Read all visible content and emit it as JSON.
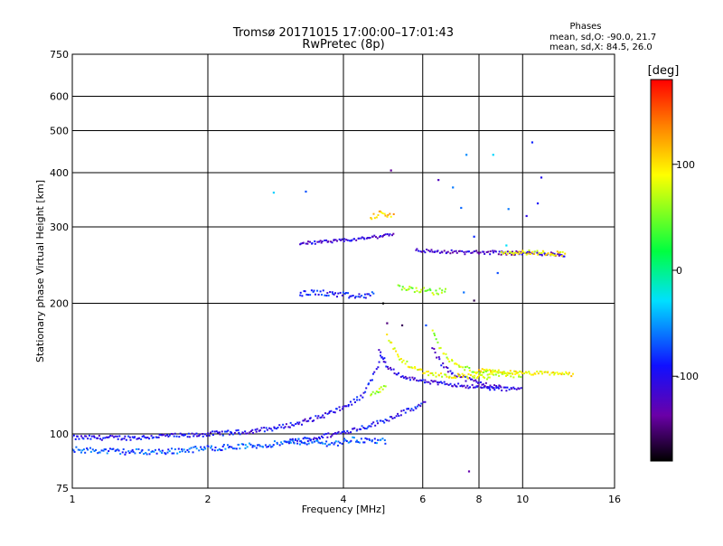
{
  "chart_data": {
    "type": "scatter",
    "title": "Tromsø 20171015 17:00:00–17:01:43",
    "subtitle": "RwPretec (8p)",
    "xlabel": "Frequency [MHz]",
    "ylabel": "Stationary phase Virtual Height [km]",
    "x_scale": "log",
    "y_scale": "log",
    "xlim": [
      1,
      16
    ],
    "ylim": [
      75,
      750
    ],
    "x_ticks": [
      1,
      2,
      4,
      6,
      8,
      10,
      16
    ],
    "x_tick_labels": [
      "1",
      "2",
      "4",
      "6",
      "8",
      "10",
      "16"
    ],
    "y_ticks": [
      75,
      100,
      200,
      300,
      400,
      500,
      600,
      750
    ],
    "y_tick_labels": [
      "75",
      "100",
      "200",
      "300",
      "400",
      "500",
      "600",
      "750"
    ],
    "grid": true,
    "stats": {
      "header": "Phases",
      "line_o": "mean, sd,O: -90.0, 21.7",
      "line_x": "mean, sd,X:  84.5, 26.0"
    },
    "colorbar": {
      "label": "[deg]",
      "min": -180,
      "max": 180,
      "ticks": [
        100,
        0,
        -100
      ],
      "tick_labels": [
        "100",
        "0",
        "-100"
      ]
    },
    "series_traces": [
      {
        "phase": -100,
        "jitter": 0.012,
        "points": [
          [
            1.0,
            98
          ],
          [
            1.2,
            98
          ],
          [
            1.4,
            98
          ],
          [
            1.6,
            99
          ],
          [
            1.8,
            99
          ],
          [
            2.0,
            100
          ],
          [
            2.4,
            101
          ],
          [
            2.8,
            103
          ],
          [
            3.2,
            106
          ],
          [
            3.6,
            110
          ],
          [
            4.0,
            115
          ],
          [
            4.4,
            122
          ],
          [
            4.7,
            138
          ],
          [
            4.85,
            150
          ],
          [
            5.0,
            146
          ]
        ]
      },
      {
        "phase": -95,
        "jitter": 0.012,
        "points": [
          [
            3.0,
            96
          ],
          [
            3.5,
            98
          ],
          [
            4.0,
            101
          ],
          [
            4.5,
            104
          ],
          [
            5.0,
            108
          ],
          [
            5.4,
            112
          ],
          [
            5.8,
            115
          ],
          [
            6.1,
            118
          ]
        ]
      },
      {
        "phase": -70,
        "jitter": 0.015,
        "points": [
          [
            1.0,
            92
          ],
          [
            1.3,
            91
          ],
          [
            1.6,
            91
          ],
          [
            2.1,
            93
          ],
          [
            2.6,
            94
          ],
          [
            3.2,
            96
          ],
          [
            3.8,
            95
          ],
          [
            4.2,
            97
          ],
          [
            5.0,
            96
          ]
        ]
      },
      {
        "phase": -105,
        "jitter": 0.01,
        "points": [
          [
            4.8,
            155
          ],
          [
            5.0,
            142
          ],
          [
            5.4,
            136
          ],
          [
            6.0,
            132
          ],
          [
            7.0,
            130
          ],
          [
            8.0,
            128
          ],
          [
            9.0,
            127
          ],
          [
            10.0,
            127
          ]
        ]
      },
      {
        "phase": -110,
        "jitter": 0.012,
        "points": [
          [
            6.3,
            158
          ],
          [
            6.6,
            145
          ],
          [
            7.0,
            138
          ],
          [
            7.5,
            134
          ],
          [
            8.2,
            130
          ],
          [
            9.0,
            128
          ]
        ]
      },
      {
        "phase": 85,
        "jitter": 0.012,
        "points": [
          [
            5.0,
            168
          ],
          [
            5.3,
            150
          ],
          [
            5.7,
            142
          ],
          [
            6.2,
            138
          ],
          [
            6.8,
            136
          ],
          [
            7.5,
            136
          ],
          [
            8.5,
            135
          ]
        ]
      },
      {
        "phase": 70,
        "jitter": 0.012,
        "points": [
          [
            6.3,
            172
          ],
          [
            6.7,
            152
          ],
          [
            7.2,
            143
          ],
          [
            8.0,
            139
          ],
          [
            9.0,
            137
          ],
          [
            10.0,
            136
          ]
        ]
      },
      {
        "phase": 95,
        "jitter": 0.01,
        "points": [
          [
            8.0,
            140
          ],
          [
            9.0,
            139
          ],
          [
            10.0,
            138
          ],
          [
            11.0,
            138
          ],
          [
            12.0,
            138
          ],
          [
            13.0,
            137
          ]
        ]
      },
      {
        "phase": 60,
        "jitter": 0.015,
        "points": [
          [
            4.6,
            122
          ],
          [
            4.8,
            126
          ],
          [
            5.0,
            130
          ]
        ]
      },
      {
        "phase": -110,
        "jitter": 0.008,
        "points": [
          [
            3.2,
            275
          ],
          [
            3.6,
            277
          ],
          [
            4.0,
            279
          ],
          [
            4.4,
            282
          ],
          [
            4.8,
            285
          ],
          [
            5.2,
            290
          ]
        ]
      },
      {
        "phase": -120,
        "jitter": 0.01,
        "points": [
          [
            5.8,
            265
          ],
          [
            6.5,
            263
          ],
          [
            7.5,
            262
          ],
          [
            8.5,
            262
          ],
          [
            9.5,
            261
          ],
          [
            10.5,
            261
          ],
          [
            11.5,
            260
          ],
          [
            12.5,
            258
          ]
        ]
      },
      {
        "phase": 90,
        "jitter": 0.012,
        "points": [
          [
            9.0,
            262
          ],
          [
            10.5,
            262
          ],
          [
            11.5,
            261
          ],
          [
            12.5,
            260
          ]
        ]
      },
      {
        "phase": 110,
        "jitter": 0.015,
        "points": [
          [
            4.6,
            315
          ],
          [
            4.8,
            322
          ],
          [
            5.0,
            318
          ],
          [
            5.2,
            322
          ]
        ]
      },
      {
        "phase": -90,
        "jitter": 0.015,
        "points": [
          [
            3.2,
            210
          ],
          [
            3.5,
            212
          ],
          [
            4.3,
            207
          ],
          [
            4.7,
            210
          ]
        ]
      },
      {
        "phase": 60,
        "jitter": 0.015,
        "points": [
          [
            5.3,
            218
          ],
          [
            5.8,
            215
          ],
          [
            6.4,
            212
          ],
          [
            6.8,
            215
          ]
        ]
      },
      {
        "phase": -100,
        "jitter": 0.02,
        "points": [
          [
            2.8,
            360
          ],
          [
            3.3,
            362
          ],
          [
            5.1,
            405
          ],
          [
            6.5,
            385
          ],
          [
            7.5,
            440
          ],
          [
            8.6,
            440
          ],
          [
            10.5,
            470
          ],
          [
            11.0,
            390
          ],
          [
            7.0,
            370
          ],
          [
            7.3,
            332
          ],
          [
            10.8,
            340
          ],
          [
            9.3,
            330
          ],
          [
            7.8,
            285
          ],
          [
            9.2,
            272
          ],
          [
            8.8,
            235
          ],
          [
            10.2,
            318
          ],
          [
            7.4,
            212
          ],
          [
            7.8,
            203
          ],
          [
            5.0,
            180
          ],
          [
            5.4,
            178
          ],
          [
            6.1,
            178
          ],
          [
            4.9,
            200
          ],
          [
            7.6,
            82
          ]
        ]
      }
    ]
  }
}
